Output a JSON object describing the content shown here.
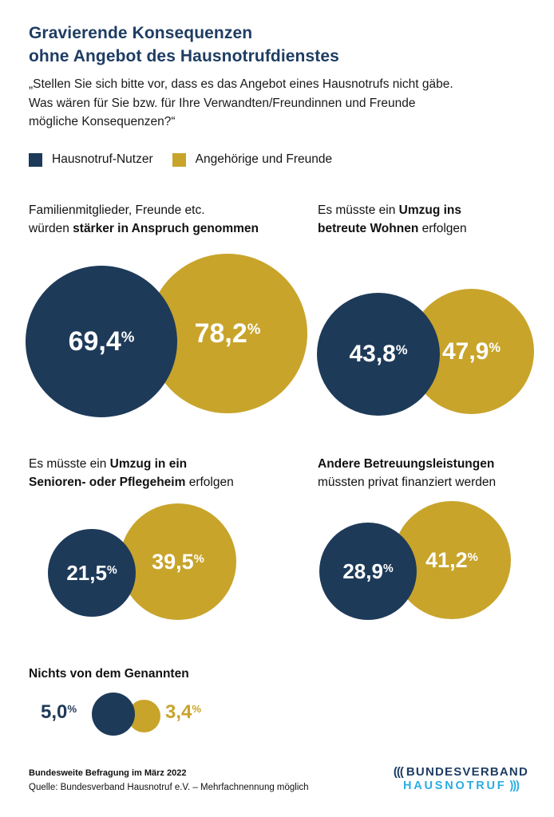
{
  "title": {
    "line1": "Gravierende Konsequenzen",
    "line2": "ohne Angebot des Hausnotrufdienstes"
  },
  "question": "„Stellen Sie sich bitte vor, dass es das Angebot eines Hausnotrufs nicht gäbe.\nWas wären für Sie bzw. für Ihre Verwandten/Freundinnen und Freunde\nmögliche Konsequenzen?“",
  "legend": {
    "users": "Hausnotruf-Nutzer",
    "relatives": "Angehörige und Freunde"
  },
  "ui": {
    "percent": "%"
  },
  "colors": {
    "navy": "#1E3A59",
    "gold": "#C8A42B",
    "title_blue": "#1E3D63",
    "logo_cyan": "#2AACE2",
    "background": "#FFFFFF",
    "bubble_text": "#FFFFFF"
  },
  "charts": [
    {
      "segments": {
        "s0": "Familienmitglieder, Freunde etc.",
        "s1": "würden ",
        "s2": "stärker in Anspruch genommen"
      },
      "values": {
        "users": "69,4",
        "relatives": "78,2"
      }
    },
    {
      "segments": {
        "s0": "Es müsste ein ",
        "s1": "Umzug ins",
        "s2": "betreute Wohnen",
        "s3": " erfolgen"
      },
      "values": {
        "users": "43,8",
        "relatives": "47,9"
      }
    },
    {
      "segments": {
        "s0": "Es müsste ein ",
        "s1": "Umzug in ein",
        "s2": "Senioren- oder Pflegeheim",
        "s3": " erfolgen"
      },
      "values": {
        "users": "21,5",
        "relatives": "39,5"
      }
    },
    {
      "segments": {
        "s0": "Andere Betreuungsleistungen",
        "s1": "müssten privat finanziert werden"
      },
      "values": {
        "users": "28,9",
        "relatives": "41,2"
      }
    },
    {
      "segments": {
        "s0": "Nichts von dem Genannten"
      },
      "values": {
        "users": "5,0",
        "relatives": "3,4"
      }
    }
  ],
  "footer": {
    "line1": "Bundesweite Befragung im März 2022",
    "line2": "Quelle: Bundesverband Hausnotruf e.V. – Mehrfachnennung möglich"
  },
  "logo": {
    "arcs_left": "(((",
    "line1": "BUNDESVERBAND",
    "line2": "HAUSNOTRUF",
    "arcs_right": ")))"
  },
  "chart_data": {
    "type": "bar",
    "encoding": "paired circles, area proportional to value, unit percent",
    "title": "Gravierende Konsequenzen ohne Angebot des Hausnotrufdienstes",
    "subtitle": "„Stellen Sie sich bitte vor, dass es das Angebot eines Hausnotrufs nicht gäbe. Was wären für Sie bzw. für Ihre Verwandten/Freundinnen und Freunde mögliche Konsequenzen?“",
    "categories": [
      "Familienmitglieder, Freunde etc. würden stärker in Anspruch genommen",
      "Es müsste ein Umzug ins betreute Wohnen erfolgen",
      "Es müsste ein Umzug in ein Senioren- oder Pflegeheim erfolgen",
      "Andere Betreuungsleistungen müssten privat finanziert werden",
      "Nichts von dem Genannten"
    ],
    "series": [
      {
        "name": "Hausnotruf-Nutzer",
        "color": "#1E3A59",
        "values": [
          69.4,
          43.8,
          21.5,
          28.9,
          5.0
        ]
      },
      {
        "name": "Angehörige und Freunde",
        "color": "#C8A42B",
        "values": [
          78.2,
          47.9,
          39.5,
          41.2,
          3.4
        ]
      }
    ],
    "value_range": [
      0,
      100
    ],
    "unit": "%",
    "legend_position": "top-left",
    "source": "Quelle: Bundesverband Hausnotruf e.V. – Mehrfachnennung möglich",
    "survey_note": "Bundesweite Befragung im März 2022"
  }
}
